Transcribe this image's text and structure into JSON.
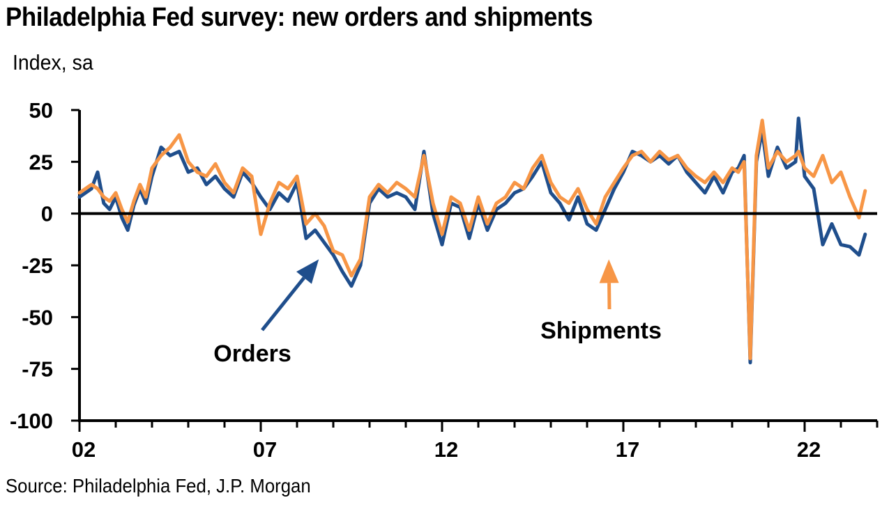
{
  "chart_title": "Philadelphia Fed survey: new orders and shipments",
  "y_unit_label": "Index, sa",
  "source": "Source: Philadelphia Fed, J.P. Morgan",
  "colors": {
    "orders": "#1f4e8c",
    "shipments": "#f79646",
    "axis": "#000000"
  },
  "chart_data": {
    "type": "line",
    "title": "Philadelphia Fed survey: new orders and shipments",
    "ylabel": "Index, sa",
    "xlabel": "",
    "xlim": [
      2002,
      2024
    ],
    "ylim": [
      -100,
      50
    ],
    "y_ticks": [
      50,
      25,
      0,
      -25,
      -50,
      -75,
      -100
    ],
    "y_tick_labels": [
      "50",
      "25",
      "0",
      "-25",
      "-50",
      "-75",
      "-100"
    ],
    "x_ticks": [
      2002,
      2007,
      2012,
      2017,
      2022
    ],
    "x_tick_labels": [
      "02",
      "07",
      "12",
      "17",
      "22"
    ],
    "grid": false,
    "zero_line": true,
    "series": [
      {
        "name": "Orders",
        "key": "orders",
        "x": [
          2002.0,
          2002.33,
          2002.5,
          2002.67,
          2002.83,
          2003.0,
          2003.17,
          2003.33,
          2003.5,
          2003.67,
          2003.83,
          2004.0,
          2004.25,
          2004.5,
          2004.75,
          2005.0,
          2005.25,
          2005.5,
          2005.75,
          2006.0,
          2006.25,
          2006.5,
          2006.75,
          2007.0,
          2007.25,
          2007.5,
          2007.75,
          2008.0,
          2008.25,
          2008.5,
          2008.75,
          2009.0,
          2009.25,
          2009.5,
          2009.75,
          2010.0,
          2010.25,
          2010.5,
          2010.75,
          2011.0,
          2011.25,
          2011.5,
          2011.75,
          2012.0,
          2012.25,
          2012.5,
          2012.75,
          2013.0,
          2013.25,
          2013.5,
          2013.75,
          2014.0,
          2014.25,
          2014.5,
          2014.75,
          2015.0,
          2015.25,
          2015.5,
          2015.75,
          2016.0,
          2016.25,
          2016.5,
          2016.75,
          2017.0,
          2017.25,
          2017.5,
          2017.75,
          2018.0,
          2018.25,
          2018.5,
          2018.75,
          2019.0,
          2019.25,
          2019.5,
          2019.75,
          2020.0,
          2020.17,
          2020.33,
          2020.5,
          2020.67,
          2020.83,
          2021.0,
          2021.25,
          2021.5,
          2021.75,
          2021.83,
          2022.0,
          2022.25,
          2022.5,
          2022.75,
          2023.0,
          2023.25,
          2023.5,
          2023.67
        ],
        "values": [
          8,
          12,
          20,
          5,
          2,
          8,
          -2,
          -8,
          4,
          12,
          5,
          18,
          32,
          28,
          30,
          20,
          22,
          14,
          18,
          12,
          8,
          20,
          15,
          8,
          2,
          10,
          6,
          15,
          -12,
          -8,
          -14,
          -20,
          -28,
          -35,
          -25,
          5,
          12,
          8,
          10,
          8,
          2,
          30,
          0,
          -15,
          5,
          3,
          -12,
          5,
          -8,
          2,
          5,
          10,
          12,
          18,
          25,
          10,
          5,
          -3,
          8,
          -5,
          -8,
          2,
          12,
          20,
          30,
          28,
          25,
          28,
          24,
          28,
          20,
          15,
          10,
          18,
          10,
          20,
          22,
          28,
          -72,
          25,
          40,
          18,
          32,
          22,
          25,
          46,
          18,
          12,
          -15,
          -5,
          -15,
          -16,
          -20,
          -10
        ]
      },
      {
        "name": "Shipments",
        "key": "shipments",
        "x": [
          2002.0,
          2002.33,
          2002.5,
          2002.67,
          2002.83,
          2003.0,
          2003.17,
          2003.33,
          2003.5,
          2003.67,
          2003.83,
          2004.0,
          2004.25,
          2004.5,
          2004.75,
          2005.0,
          2005.25,
          2005.5,
          2005.75,
          2006.0,
          2006.25,
          2006.5,
          2006.75,
          2007.0,
          2007.25,
          2007.5,
          2007.75,
          2008.0,
          2008.25,
          2008.5,
          2008.75,
          2009.0,
          2009.25,
          2009.5,
          2009.75,
          2010.0,
          2010.25,
          2010.5,
          2010.75,
          2011.0,
          2011.25,
          2011.5,
          2011.75,
          2012.0,
          2012.25,
          2012.5,
          2012.75,
          2013.0,
          2013.25,
          2013.5,
          2013.75,
          2014.0,
          2014.25,
          2014.5,
          2014.75,
          2015.0,
          2015.25,
          2015.5,
          2015.75,
          2016.0,
          2016.25,
          2016.5,
          2016.75,
          2017.0,
          2017.25,
          2017.5,
          2017.75,
          2018.0,
          2018.25,
          2018.5,
          2018.75,
          2019.0,
          2019.25,
          2019.5,
          2019.75,
          2020.0,
          2020.17,
          2020.33,
          2020.5,
          2020.67,
          2020.83,
          2021.0,
          2021.25,
          2021.5,
          2021.75,
          2021.83,
          2022.0,
          2022.25,
          2022.5,
          2022.75,
          2023.0,
          2023.25,
          2023.5,
          2023.67
        ],
        "values": [
          10,
          14,
          12,
          8,
          6,
          10,
          2,
          -4,
          6,
          14,
          8,
          22,
          28,
          32,
          38,
          25,
          20,
          18,
          24,
          15,
          10,
          22,
          18,
          -10,
          5,
          15,
          12,
          18,
          -5,
          0,
          -6,
          -18,
          -20,
          -30,
          -22,
          8,
          14,
          10,
          15,
          12,
          8,
          28,
          5,
          -10,
          8,
          5,
          -8,
          8,
          -5,
          5,
          8,
          15,
          12,
          22,
          28,
          15,
          8,
          5,
          12,
          2,
          -5,
          8,
          15,
          22,
          28,
          30,
          25,
          30,
          26,
          28,
          22,
          18,
          15,
          20,
          15,
          22,
          20,
          25,
          -70,
          28,
          45,
          22,
          30,
          25,
          28,
          30,
          22,
          18,
          28,
          15,
          20,
          8,
          -2,
          11
        ]
      }
    ],
    "annotations": [
      {
        "text": "Orders",
        "series": "orders",
        "arrow_to": [
          2008.6,
          -12
        ]
      },
      {
        "text": "Shipments",
        "series": "shipments",
        "arrow_to": [
          2016.6,
          -12
        ]
      }
    ]
  }
}
